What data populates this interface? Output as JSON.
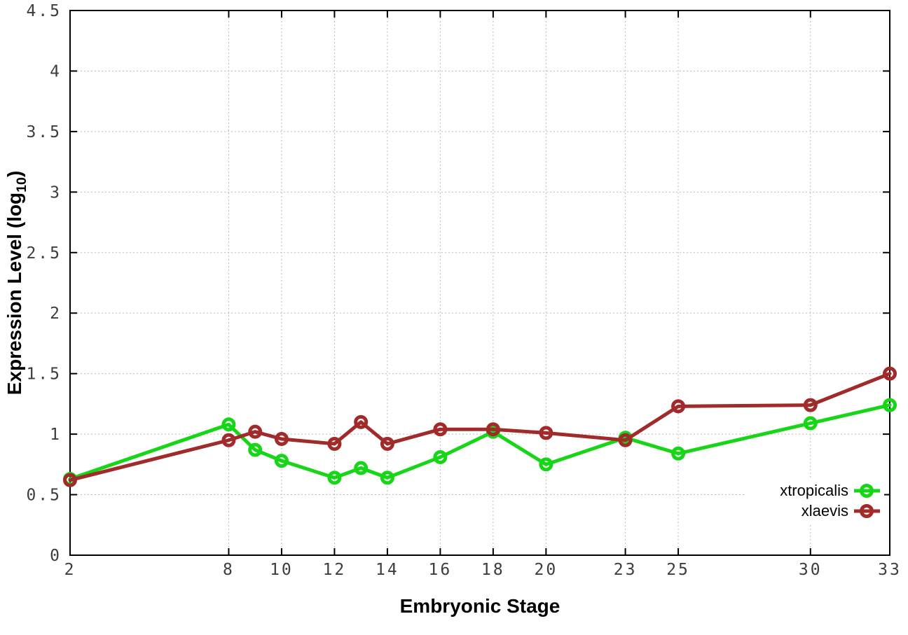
{
  "figure": {
    "background": "#ffffff",
    "y_axis_title_parts": {
      "prefix": "Expression Level (log",
      "sub": "10",
      "suffix": ")"
    }
  },
  "chart_data": {
    "type": "line",
    "title": "",
    "xlabel": "Embryonic Stage",
    "ylabel": "Expression Level (log10)",
    "xlim": [
      2,
      33
    ],
    "ylim": [
      0,
      4.5
    ],
    "x_ticks": [
      2,
      8,
      10,
      12,
      14,
      16,
      18,
      20,
      23,
      25,
      30,
      33
    ],
    "y_ticks": [
      0,
      0.5,
      1,
      1.5,
      2,
      2.5,
      3,
      3.5,
      4,
      4.5
    ],
    "y_tick_labels": [
      "0",
      "0.5",
      "1",
      "1.5",
      "2",
      "2.5",
      "3",
      "3.5",
      "4",
      "4.5"
    ],
    "grid": true,
    "grid_color": "#bdbdbd",
    "border_color": "#000000",
    "tick_label_color": "#3d3d3d",
    "marker": "open-circle",
    "legend_position": "inside-bottom-right",
    "x": [
      2,
      8,
      9,
      10,
      12,
      13,
      14,
      16,
      18,
      20,
      23,
      25,
      30,
      33
    ],
    "series": [
      {
        "name": "xtropicalis",
        "color": "#17d517",
        "values": [
          0.63,
          1.08,
          0.87,
          0.78,
          0.64,
          0.72,
          0.64,
          0.81,
          1.02,
          0.75,
          0.97,
          0.84,
          1.09,
          1.24
        ]
      },
      {
        "name": "xlaevis",
        "color": "#a12b2b",
        "values": [
          0.62,
          0.95,
          1.02,
          0.96,
          0.92,
          1.1,
          0.92,
          1.04,
          1.04,
          1.01,
          0.95,
          1.23,
          1.24,
          1.5
        ]
      }
    ]
  }
}
